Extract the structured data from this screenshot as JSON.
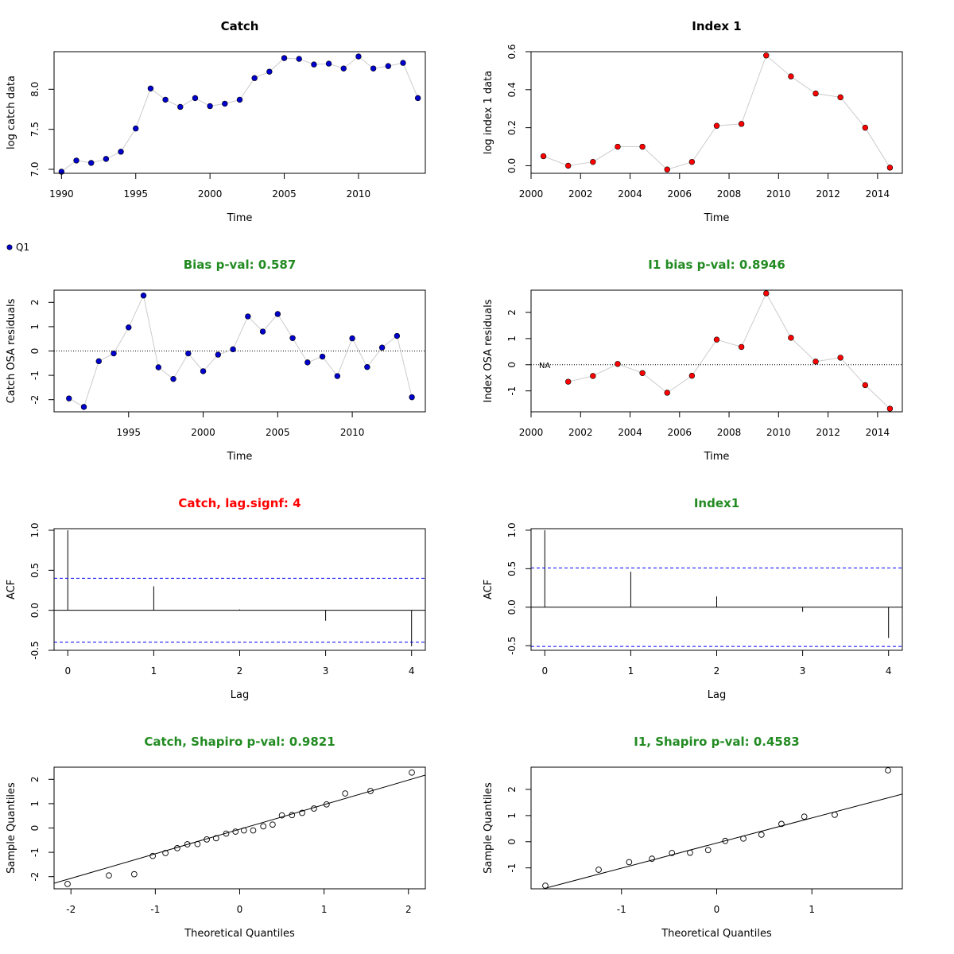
{
  "legend": {
    "label": "Q1",
    "color": "#0000CD"
  },
  "chart_data": [
    {
      "type": "scatter",
      "title": "Catch",
      "title_color": "#000000",
      "xlabel": "Time",
      "ylabel": "log catch data",
      "xlim": [
        1989.5,
        2014.5
      ],
      "ylim": [
        6.95,
        8.47
      ],
      "xticks": [
        1990,
        1995,
        2000,
        2005,
        2010
      ],
      "yticks": [
        7.0,
        7.5,
        8.0
      ],
      "ytick_labels": [
        "7.0",
        "7.5",
        "8.0"
      ],
      "point_color": "#0000CD",
      "connect": true,
      "series": [
        {
          "x": [
            1990,
            1991,
            1992,
            1993,
            1994,
            1995,
            1996,
            1997,
            1998,
            1999,
            2000,
            2001,
            2002,
            2003,
            2004,
            2005,
            2006,
            2007,
            2008,
            2009,
            2010,
            2011,
            2012,
            2013,
            2014
          ],
          "y": [
            6.97,
            7.11,
            7.08,
            7.13,
            7.22,
            7.51,
            8.01,
            7.87,
            7.78,
            7.89,
            7.79,
            7.82,
            7.87,
            8.14,
            8.22,
            8.39,
            8.38,
            8.31,
            8.32,
            8.26,
            8.41,
            8.26,
            8.29,
            8.33,
            7.89
          ]
        }
      ]
    },
    {
      "type": "scatter",
      "title": "Index 1",
      "title_color": "#000000",
      "xlabel": "Time",
      "ylabel": "log index 1 data",
      "xlim": [
        2000.0,
        2015.0
      ],
      "ylim": [
        -0.04,
        0.6
      ],
      "xticks": [
        2000,
        2002,
        2004,
        2006,
        2008,
        2010,
        2012,
        2014
      ],
      "yticks": [
        0.0,
        0.2,
        0.4,
        0.6
      ],
      "ytick_labels": [
        "0.0",
        "0.2",
        "0.4",
        "0.6"
      ],
      "point_color": "#FF0000",
      "connect": true,
      "series": [
        {
          "x": [
            2000.5,
            2001.5,
            2002.5,
            2003.5,
            2004.5,
            2005.5,
            2006.5,
            2007.5,
            2008.5,
            2009.5,
            2010.5,
            2011.5,
            2012.5,
            2013.5,
            2014.5
          ],
          "y": [
            0.05,
            0.0,
            0.02,
            0.1,
            0.1,
            -0.02,
            0.02,
            0.21,
            0.22,
            0.58,
            0.47,
            0.38,
            0.36,
            0.2,
            -0.01
          ]
        }
      ]
    },
    {
      "type": "scatter",
      "title": "Bias p-val: 0.587",
      "title_color": "#228B22",
      "xlabel": "Time",
      "ylabel": "Catch OSA residuals",
      "xlim": [
        1990.0,
        2014.9
      ],
      "ylim": [
        -2.5,
        2.5
      ],
      "xticks": [
        1995,
        2000,
        2005,
        2010
      ],
      "yticks": [
        -2,
        -1,
        0,
        1,
        2
      ],
      "ytick_labels": [
        "-2",
        "-1",
        "0",
        "1",
        "2"
      ],
      "point_color": "#0000CD",
      "connect": true,
      "hline": 0,
      "series": [
        {
          "x": [
            1991,
            1992,
            1993,
            1994,
            1995,
            1996,
            1997,
            1998,
            1999,
            2000,
            2001,
            2002,
            2003,
            2004,
            2005,
            2006,
            2007,
            2008,
            2009,
            2010,
            2011,
            2012,
            2013,
            2014
          ],
          "y": [
            -1.95,
            -2.3,
            -0.42,
            -0.1,
            0.97,
            2.28,
            -0.67,
            -1.15,
            -0.1,
            -0.83,
            -0.15,
            0.07,
            1.42,
            0.8,
            1.52,
            0.53,
            -0.47,
            -0.23,
            -1.03,
            0.52,
            -0.66,
            0.14,
            0.62,
            -1.9
          ]
        }
      ]
    },
    {
      "type": "scatter",
      "title": "I1 bias p-val: 0.8946",
      "title_color": "#228B22",
      "xlabel": "Time",
      "ylabel": "Index OSA residuals",
      "xlim": [
        2000.0,
        2015.0
      ],
      "ylim": [
        -1.8,
        2.85
      ],
      "xticks": [
        2000,
        2002,
        2004,
        2006,
        2008,
        2010,
        2012,
        2014
      ],
      "yticks": [
        -1,
        0,
        1,
        2
      ],
      "ytick_labels": [
        "-1",
        "0",
        "1",
        "2"
      ],
      "point_color": "#FF0000",
      "connect": true,
      "hline": 0,
      "annotation": "NA",
      "series": [
        {
          "x": [
            2001.5,
            2002.5,
            2003.5,
            2004.5,
            2005.5,
            2006.5,
            2007.5,
            2008.5,
            2009.5,
            2010.5,
            2011.5,
            2012.5,
            2013.5,
            2014.5
          ],
          "y": [
            -0.65,
            -0.43,
            0.03,
            -0.32,
            -1.07,
            -0.42,
            0.96,
            0.68,
            2.73,
            1.03,
            0.12,
            0.27,
            -0.78,
            -1.68
          ]
        }
      ]
    },
    {
      "type": "bar",
      "subtype": "acf",
      "title": "Catch, lag.signf: 4",
      "title_color": "#FF0000",
      "xlabel": "Lag",
      "ylabel": "ACF",
      "xlim": [
        -0.16,
        4.16
      ],
      "ylim": [
        -0.5,
        1.02
      ],
      "xticks": [
        0,
        1,
        2,
        3,
        4
      ],
      "yticks": [
        -0.5,
        0.0,
        0.5,
        1.0
      ],
      "ytick_labels": [
        "-0.5",
        "0.0",
        "0.5",
        "1.0"
      ],
      "lags": [
        0,
        1,
        2,
        3,
        4
      ],
      "values": [
        1.0,
        0.3,
        0.01,
        -0.13,
        -0.45
      ],
      "ci": 0.4
    },
    {
      "type": "bar",
      "subtype": "acf",
      "title": "Index1",
      "title_color": "#228B22",
      "xlabel": "Lag",
      "ylabel": "ACF",
      "xlim": [
        -0.16,
        4.16
      ],
      "ylim": [
        -0.56,
        1.02
      ],
      "xticks": [
        0,
        1,
        2,
        3,
        4
      ],
      "yticks": [
        -0.5,
        0.0,
        0.5,
        1.0
      ],
      "ytick_labels": [
        "-0.5",
        "0.0",
        "0.5",
        "1.0"
      ],
      "lags": [
        0,
        1,
        2,
        3,
        4
      ],
      "values": [
        1.0,
        0.46,
        0.14,
        -0.06,
        -0.4
      ],
      "ci": 0.51
    },
    {
      "type": "scatter",
      "subtype": "qq",
      "title": "Catch, Shapiro p-val: 0.9821",
      "title_color": "#228B22",
      "xlabel": "Theoretical Quantiles",
      "ylabel": "Sample Quantiles",
      "xlim": [
        -2.2,
        2.2
      ],
      "ylim": [
        -2.5,
        2.5
      ],
      "xticks": [
        -2,
        -1,
        0,
        1,
        2
      ],
      "yticks": [
        -2,
        -1,
        0,
        1,
        2
      ],
      "ytick_labels": [
        "-2",
        "-1",
        "0",
        "1",
        "2"
      ],
      "qq_line": {
        "intercept": -0.05,
        "slope": 1.01
      },
      "series": [
        {
          "x": [
            -2.04,
            -1.55,
            -1.25,
            -1.03,
            -0.88,
            -0.74,
            -0.62,
            -0.5,
            -0.39,
            -0.28,
            -0.16,
            -0.05,
            0.05,
            0.16,
            0.28,
            0.39,
            0.5,
            0.62,
            0.74,
            0.88,
            1.03,
            1.25,
            1.55,
            2.04
          ],
          "y": [
            -2.3,
            -1.95,
            -1.9,
            -1.15,
            -1.03,
            -0.83,
            -0.67,
            -0.66,
            -0.47,
            -0.42,
            -0.23,
            -0.15,
            -0.1,
            -0.1,
            0.07,
            0.14,
            0.52,
            0.53,
            0.62,
            0.8,
            0.97,
            1.42,
            1.52,
            2.28
          ]
        }
      ]
    },
    {
      "type": "scatter",
      "subtype": "qq",
      "title": "I1, Shapiro p-val: 0.4583",
      "title_color": "#228B22",
      "xlabel": "Theoretical Quantiles",
      "ylabel": "Sample Quantiles",
      "xlim": [
        -1.95,
        1.95
      ],
      "ylim": [
        -1.8,
        2.85
      ],
      "xticks": [
        -1,
        0,
        1
      ],
      "yticks": [
        -1,
        0,
        1,
        2
      ],
      "ytick_labels": [
        "-1",
        "0",
        "1",
        "2"
      ],
      "qq_line": {
        "intercept": -0.05,
        "slope": 0.96
      },
      "series": [
        {
          "x": [
            -1.8,
            -1.24,
            -0.92,
            -0.68,
            -0.47,
            -0.28,
            -0.09,
            0.09,
            0.28,
            0.47,
            0.68,
            0.92,
            1.24,
            1.8
          ],
          "y": [
            -1.68,
            -1.07,
            -0.78,
            -0.65,
            -0.43,
            -0.42,
            -0.32,
            0.03,
            0.12,
            0.27,
            0.68,
            0.96,
            1.03,
            2.73
          ]
        }
      ]
    }
  ]
}
